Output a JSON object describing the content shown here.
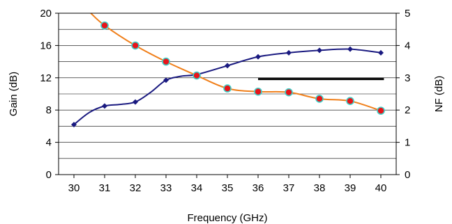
{
  "chart_data": {
    "type": "line",
    "xlabel": "Frequency (GHz)",
    "ylabel": "Gain (dB)",
    "y2label": "NF (dB)",
    "xlim": [
      29.5,
      40.5
    ],
    "ylim": [
      0,
      20
    ],
    "y2lim": [
      0,
      5
    ],
    "x_ticks": [
      30,
      31,
      32,
      33,
      34,
      35,
      36,
      37,
      38,
      39,
      40
    ],
    "y_ticks": [
      0,
      4,
      8,
      12,
      16,
      20
    ],
    "y2_ticks": [
      0,
      1,
      2,
      3,
      4,
      5
    ],
    "grid": "horizontal",
    "series": [
      {
        "axis": "left",
        "color": "#1a1a80",
        "marker": "diamond",
        "x": [
          30,
          30.5,
          31,
          31.5,
          32,
          32.5,
          33,
          33.5,
          34,
          35,
          36,
          37,
          38,
          39,
          40
        ],
        "y": [
          6.2,
          7.7,
          8.5,
          8.7,
          9.0,
          10.2,
          11.7,
          12.2,
          12.4,
          13.5,
          14.6,
          15.1,
          15.4,
          15.55,
          15.1
        ],
        "markers_at": [
          30,
          31,
          32,
          33,
          34,
          35,
          36,
          37,
          38,
          39,
          40
        ]
      },
      {
        "axis": "right",
        "color": "#f07f1a",
        "marker_fill": "#e8141a",
        "marker_edge": "#3fd0c8",
        "marker": "circle",
        "x": [
          30.55,
          31,
          32,
          33,
          34,
          35,
          36,
          37,
          38,
          39,
          40
        ],
        "y": [
          5.0,
          4.62,
          4.0,
          3.5,
          3.07,
          2.67,
          2.57,
          2.55,
          2.35,
          2.28,
          1.98
        ],
        "markers_at": [
          31,
          32,
          33,
          34,
          35,
          36,
          37,
          38,
          39,
          40
        ]
      }
    ],
    "annotations": [
      {
        "type": "hline",
        "axis": "right",
        "y": 2.96,
        "x_start": 36.0,
        "x_end": 40.1,
        "color": "#000000"
      }
    ]
  }
}
